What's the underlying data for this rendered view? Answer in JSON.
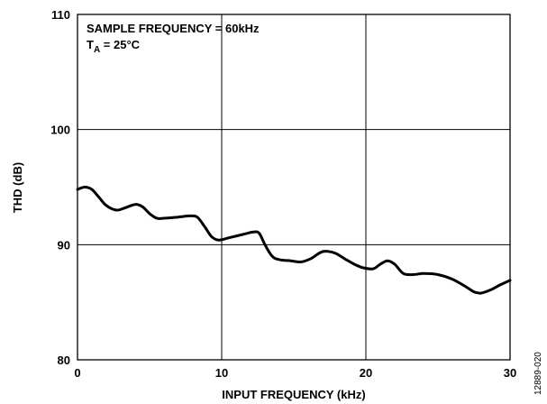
{
  "chart_data": {
    "type": "line",
    "title": "",
    "xlabel": "INPUT FREQUENCY (kHz)",
    "ylabel": "THD (dB)",
    "xlim": [
      0,
      30
    ],
    "ylim": [
      80,
      110
    ],
    "xticks": [
      0,
      10,
      20,
      30
    ],
    "yticks": [
      80,
      90,
      100,
      110
    ],
    "x_tick_labels": [
      "0",
      "10",
      "20",
      "30"
    ],
    "y_tick_labels": [
      "80",
      "90",
      "100",
      "110"
    ],
    "grid": true,
    "annotations": {
      "line1": "SAMPLE FREQUENCY = 60kHz",
      "line2_main": "T",
      "line2_sub": "A",
      "line2_rest": " = 25°C"
    },
    "figure_code": "12889-020",
    "series": [
      {
        "x": [
          0,
          0.5,
          1,
          1.5,
          2,
          2.7,
          3.3,
          4,
          4.5,
          5,
          5.5,
          6,
          7,
          7.8,
          8.3,
          8.8,
          9.3,
          9.8,
          10.5,
          11.5,
          12.2,
          12.6,
          13,
          13.5,
          14,
          14.8,
          15.5,
          16.2,
          17,
          17.8,
          18.5,
          19.2,
          19.8,
          20.5,
          21,
          21.5,
          22,
          22.6,
          23.3,
          24,
          25,
          26,
          27,
          27.5,
          28,
          28.7,
          29.3,
          30
        ],
        "y": [
          94.8,
          95.0,
          94.8,
          94.1,
          93.4,
          93.0,
          93.2,
          93.5,
          93.3,
          92.7,
          92.3,
          92.3,
          92.4,
          92.5,
          92.4,
          91.6,
          90.7,
          90.4,
          90.6,
          90.9,
          91.1,
          91.0,
          90.0,
          89.0,
          88.7,
          88.6,
          88.5,
          88.8,
          89.4,
          89.3,
          88.8,
          88.3,
          88.0,
          87.9,
          88.3,
          88.6,
          88.3,
          87.5,
          87.4,
          87.5,
          87.4,
          87.0,
          86.3,
          85.9,
          85.8,
          86.1,
          86.5,
          86.9
        ]
      }
    ]
  }
}
